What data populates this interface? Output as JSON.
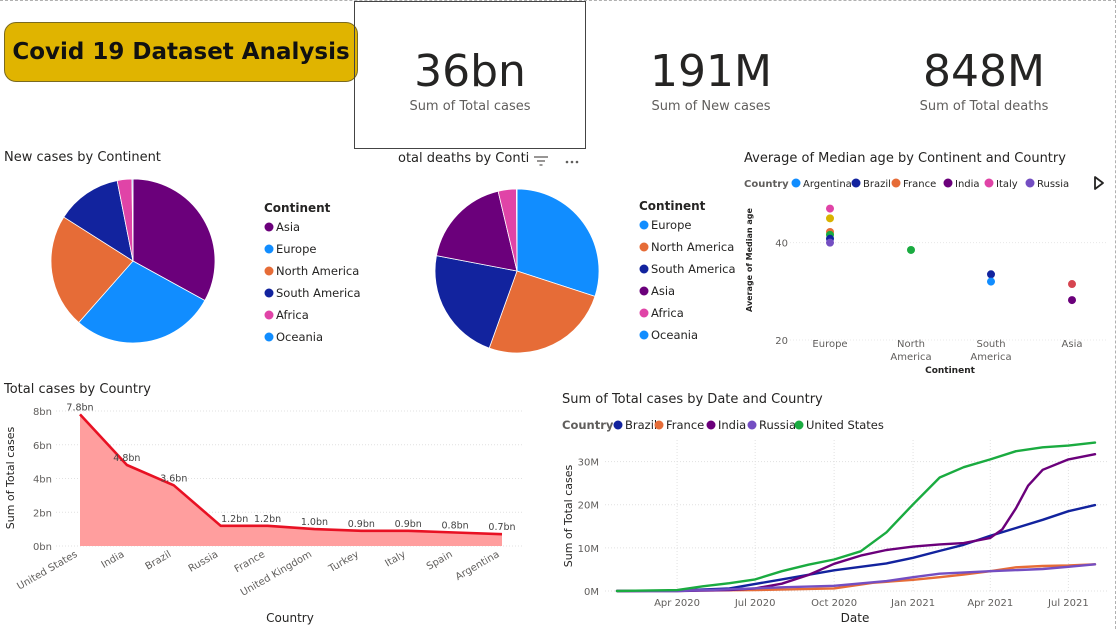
{
  "title": "Covid 19 Dataset Analysis",
  "kpis": [
    {
      "value": "36bn",
      "label": "Sum of Total cases"
    },
    {
      "value": "191M",
      "label": "Sum of New cases"
    },
    {
      "value": "848M",
      "label": "Sum of Total deaths"
    }
  ],
  "icons": [
    "filter-icon",
    "more-options-icon",
    "play-icon"
  ],
  "chart_data": [
    {
      "id": "pie1",
      "type": "pie",
      "title": "New cases by Continent",
      "legend_title": "Continent",
      "legend_position": "right",
      "slices": [
        {
          "label": "Asia",
          "value": 33.0,
          "color": "#6b007b"
        },
        {
          "label": "Europe",
          "value": 28.5,
          "color": "#118dff"
        },
        {
          "label": "North America",
          "value": 22.5,
          "color": "#e66c37"
        },
        {
          "label": "South America",
          "value": 12.9,
          "color": "#12239e"
        },
        {
          "label": "Africa",
          "value": 2.9,
          "color": "#e044a7"
        },
        {
          "label": "Oceania",
          "value": 0.2,
          "color": "#118dff"
        }
      ]
    },
    {
      "id": "pie2",
      "type": "pie",
      "title": "otal deaths by Conti",
      "legend_title": "Continent",
      "legend_position": "right",
      "slices": [
        {
          "label": "Europe",
          "value": 30.0,
          "color": "#118dff"
        },
        {
          "label": "North America",
          "value": 25.5,
          "color": "#e66c37"
        },
        {
          "label": "South America",
          "value": 22.5,
          "color": "#12239e"
        },
        {
          "label": "Asia",
          "value": 18.3,
          "color": "#6b007b"
        },
        {
          "label": "Africa",
          "value": 3.6,
          "color": "#e044a7"
        },
        {
          "label": "Oceania",
          "value": 0.1,
          "color": "#118dff"
        }
      ]
    },
    {
      "id": "scatter",
      "type": "scatter",
      "title": "Average of Median age by Continent and Country",
      "legend_title": "Country",
      "legend": [
        {
          "label": "Argentina",
          "color": "#118dff"
        },
        {
          "label": "Brazil",
          "color": "#12239e"
        },
        {
          "label": "France",
          "color": "#e66c37"
        },
        {
          "label": "India",
          "color": "#6b007b"
        },
        {
          "label": "Italy",
          "color": "#e044a7"
        },
        {
          "label": "Russia",
          "color": "#744ec2"
        }
      ],
      "xlabel": "Continent",
      "ylabel": "Average of Median age",
      "categories": [
        "Europe",
        "North America",
        "South America",
        "Asia"
      ],
      "ylim": [
        20,
        50
      ],
      "yticks": [
        20,
        40
      ],
      "points": [
        {
          "x": "Europe",
          "y": 47.0,
          "color": "#e044a7"
        },
        {
          "x": "Europe",
          "y": 45.0,
          "color": "#d9b300"
        },
        {
          "x": "Europe",
          "y": 42.2,
          "color": "#e66c37"
        },
        {
          "x": "Europe",
          "y": 41.6,
          "color": "#1aab40"
        },
        {
          "x": "Europe",
          "y": 40.8,
          "color": "#12239e"
        },
        {
          "x": "Europe",
          "y": 40.0,
          "color": "#744ec2"
        },
        {
          "x": "North America",
          "y": 38.5,
          "color": "#1aab40"
        },
        {
          "x": "South America",
          "y": 33.5,
          "color": "#12239e"
        },
        {
          "x": "South America",
          "y": 32.0,
          "color": "#118dff"
        },
        {
          "x": "Asia",
          "y": 31.5,
          "color": "#d64550"
        },
        {
          "x": "Asia",
          "y": 28.2,
          "color": "#6b007b"
        }
      ]
    },
    {
      "id": "area",
      "type": "area",
      "title": "Total cases by Country",
      "xlabel": "Country",
      "ylabel": "Sum of Total cases",
      "ylim": [
        0,
        8
      ],
      "yticks": [
        {
          "v": 0,
          "label": "0bn"
        },
        {
          "v": 2,
          "label": "2bn"
        },
        {
          "v": 4,
          "label": "4bn"
        },
        {
          "v": 6,
          "label": "6bn"
        },
        {
          "v": 8,
          "label": "8bn"
        }
      ],
      "categories": [
        "United States",
        "India",
        "Brazil",
        "Russia",
        "France",
        "United Kingdom",
        "Turkey",
        "Italy",
        "Spain",
        "Argentina"
      ],
      "values": [
        7.8,
        4.8,
        3.6,
        1.2,
        1.2,
        1.0,
        0.9,
        0.9,
        0.8,
        0.7
      ],
      "data_labels": [
        "7.8bn",
        "4.8bn",
        "3.6bn",
        "1.2bn",
        "1.2bn",
        "1.0bn",
        "0.9bn",
        "0.9bn",
        "0.8bn",
        "0.7bn"
      ],
      "line_color": "#e81123",
      "fill_color": "#ff9e9e"
    },
    {
      "id": "line",
      "type": "line",
      "title": "Sum of Total cases by Date and Country",
      "legend_title": "Country",
      "xlabel": "Date",
      "ylabel": "Sum of Total cases",
      "ylim": [
        0,
        35
      ],
      "yticks": [
        {
          "v": 0,
          "label": "0M"
        },
        {
          "v": 10,
          "label": "10M"
        },
        {
          "v": 20,
          "label": "20M"
        },
        {
          "v": 30,
          "label": "30M"
        }
      ],
      "xlim": [
        "2020-01-22",
        "2021-08-01"
      ],
      "xticks": [
        {
          "date": "2020-04-01",
          "label": "Apr 2020"
        },
        {
          "date": "2020-07-01",
          "label": "Jul 2020"
        },
        {
          "date": "2020-10-01",
          "label": "Oct 2020"
        },
        {
          "date": "2021-01-01",
          "label": "Jan 2021"
        },
        {
          "date": "2021-04-01",
          "label": "Apr 2021"
        },
        {
          "date": "2021-07-01",
          "label": "Jul 2021"
        }
      ],
      "series": [
        {
          "name": "Brazil",
          "color": "#12239e",
          "x": [
            "2020-01-22",
            "2020-04-01",
            "2020-06-01",
            "2020-08-01",
            "2020-10-01",
            "2020-12-01",
            "2021-01-01",
            "2021-02-01",
            "2021-03-01",
            "2021-04-01",
            "2021-05-01",
            "2021-06-01",
            "2021-07-01",
            "2021-08-01"
          ],
          "y": [
            0,
            0.1,
            0.6,
            2.7,
            4.8,
            6.4,
            7.7,
            9.3,
            10.7,
            12.8,
            14.6,
            16.5,
            18.5,
            19.9
          ]
        },
        {
          "name": "France",
          "color": "#e66c37",
          "x": [
            "2020-01-22",
            "2020-04-01",
            "2020-07-01",
            "2020-10-01",
            "2020-11-15",
            "2021-01-01",
            "2021-02-01",
            "2021-03-01",
            "2021-04-01",
            "2021-05-01",
            "2021-06-01",
            "2021-07-01",
            "2021-08-01"
          ],
          "y": [
            0,
            0.1,
            0.2,
            0.6,
            1.9,
            2.6,
            3.2,
            3.8,
            4.6,
            5.5,
            5.8,
            5.9,
            6.2
          ]
        },
        {
          "name": "India",
          "color": "#6b007b",
          "x": [
            "2020-01-22",
            "2020-04-01",
            "2020-06-01",
            "2020-07-01",
            "2020-08-01",
            "2020-09-01",
            "2020-10-01",
            "2020-11-01",
            "2020-12-01",
            "2021-01-01",
            "2021-02-01",
            "2021-03-01",
            "2021-04-01",
            "2021-04-15",
            "2021-05-01",
            "2021-05-15",
            "2021-06-01",
            "2021-07-01",
            "2021-08-01"
          ],
          "y": [
            0,
            0.002,
            0.2,
            0.6,
            1.7,
            3.7,
            6.3,
            8.2,
            9.5,
            10.3,
            10.8,
            11.1,
            12.3,
            14.3,
            19.2,
            24.4,
            28.1,
            30.5,
            31.7
          ]
        },
        {
          "name": "Russia",
          "color": "#744ec2",
          "x": [
            "2020-01-22",
            "2020-04-01",
            "2020-06-01",
            "2020-08-01",
            "2020-10-01",
            "2020-12-01",
            "2021-01-01",
            "2021-02-01",
            "2021-04-01",
            "2021-06-01",
            "2021-07-01",
            "2021-08-01"
          ],
          "y": [
            0,
            0.003,
            0.4,
            0.85,
            1.2,
            2.3,
            3.2,
            4.0,
            4.6,
            5.1,
            5.6,
            6.2
          ]
        },
        {
          "name": "United States",
          "color": "#1aab40",
          "x": [
            "2020-01-22",
            "2020-04-01",
            "2020-05-01",
            "2020-06-01",
            "2020-07-01",
            "2020-08-01",
            "2020-09-01",
            "2020-10-01",
            "2020-11-01",
            "2020-12-01",
            "2021-01-01",
            "2021-02-01",
            "2021-03-01",
            "2021-04-01",
            "2021-05-01",
            "2021-06-01",
            "2021-07-01",
            "2021-08-01"
          ],
          "y": [
            0,
            0.2,
            1.1,
            1.8,
            2.7,
            4.6,
            6.1,
            7.3,
            9.2,
            13.6,
            20.1,
            26.3,
            28.7,
            30.5,
            32.4,
            33.3,
            33.7,
            34.4
          ]
        }
      ]
    }
  ]
}
